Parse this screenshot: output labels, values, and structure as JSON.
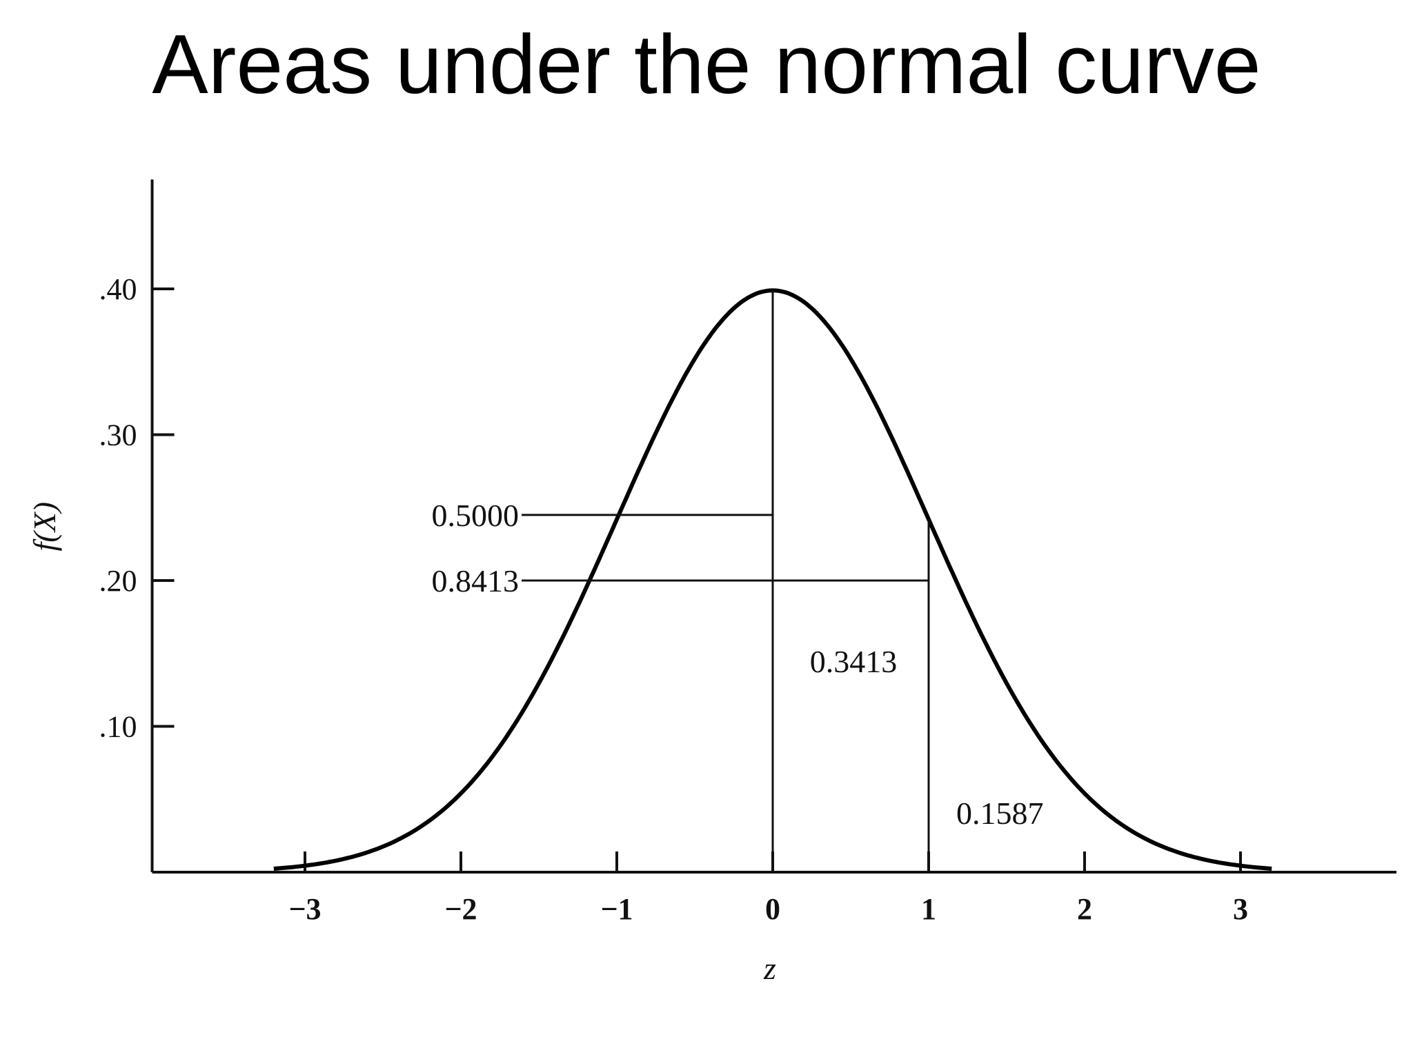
{
  "slide": {
    "title": "Areas under the normal curve"
  },
  "chart_data": {
    "type": "area",
    "function": "standard normal density",
    "xlabel": "z",
    "ylabel": "f(X)",
    "x_ticks": [
      -3,
      -2,
      -1,
      0,
      1,
      2,
      3
    ],
    "x_tick_labels": [
      "−3",
      "−2",
      "−1",
      "0",
      "1",
      "2",
      "3"
    ],
    "y_ticks": [
      0.1,
      0.2,
      0.3,
      0.4
    ],
    "y_tick_labels": [
      ".10",
      ".20",
      ".30",
      ".40"
    ],
    "xlim": [
      -3.98,
      4.0
    ],
    "ylim": [
      0,
      0.475
    ],
    "grid": false,
    "vertical_lines": [
      {
        "z": 0,
        "top": 0.3989
      },
      {
        "z": 1,
        "top": 0.242
      }
    ],
    "annotations": [
      {
        "label": "0.5000",
        "value": 0.5,
        "leader_y": 0.245,
        "leader_to_z": 0
      },
      {
        "label": "0.8413",
        "value": 0.8413,
        "leader_y": 0.2,
        "leader_to_z": 1
      },
      {
        "label": "0.3413",
        "value": 0.3413,
        "region": [
          0,
          1
        ]
      },
      {
        "label": "0.1587",
        "value": 0.1587,
        "region": [
          1,
          "inf"
        ]
      }
    ],
    "colors": {
      "curve": "#000000",
      "axes": "#111111",
      "text": "#111111"
    }
  }
}
